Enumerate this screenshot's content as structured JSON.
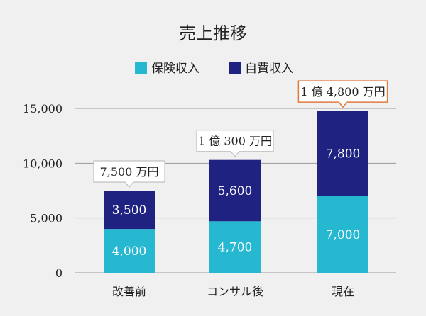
{
  "chart_data": {
    "type": "bar",
    "stacked": true,
    "title": "売上推移",
    "categories": [
      "改善前",
      "コンサル後",
      "現在"
    ],
    "series": [
      {
        "name": "保険収入",
        "color": "#25b8d0",
        "values": [
          4000,
          4700,
          7000
        ],
        "value_labels": [
          "4,000",
          "4,700",
          "7,000"
        ]
      },
      {
        "name": "自費収入",
        "color": "#1f2280",
        "values": [
          3500,
          5600,
          7800
        ],
        "value_labels": [
          "3,500",
          "5,600",
          "7,800"
        ]
      }
    ],
    "totals": [
      "7,500 万円",
      "1 億 300 万円",
      "1 億 4,800 万円"
    ],
    "highlight_total_index": 2,
    "highlight_color": "#e07b3c",
    "ylim": [
      0,
      15000
    ],
    "yticks": [
      0,
      5000,
      10000,
      15000
    ],
    "ytick_labels": [
      "0",
      "5,000",
      "10,000",
      "15,000"
    ],
    "legend_position": "top",
    "grid": true,
    "xlabel": "",
    "ylabel": ""
  }
}
